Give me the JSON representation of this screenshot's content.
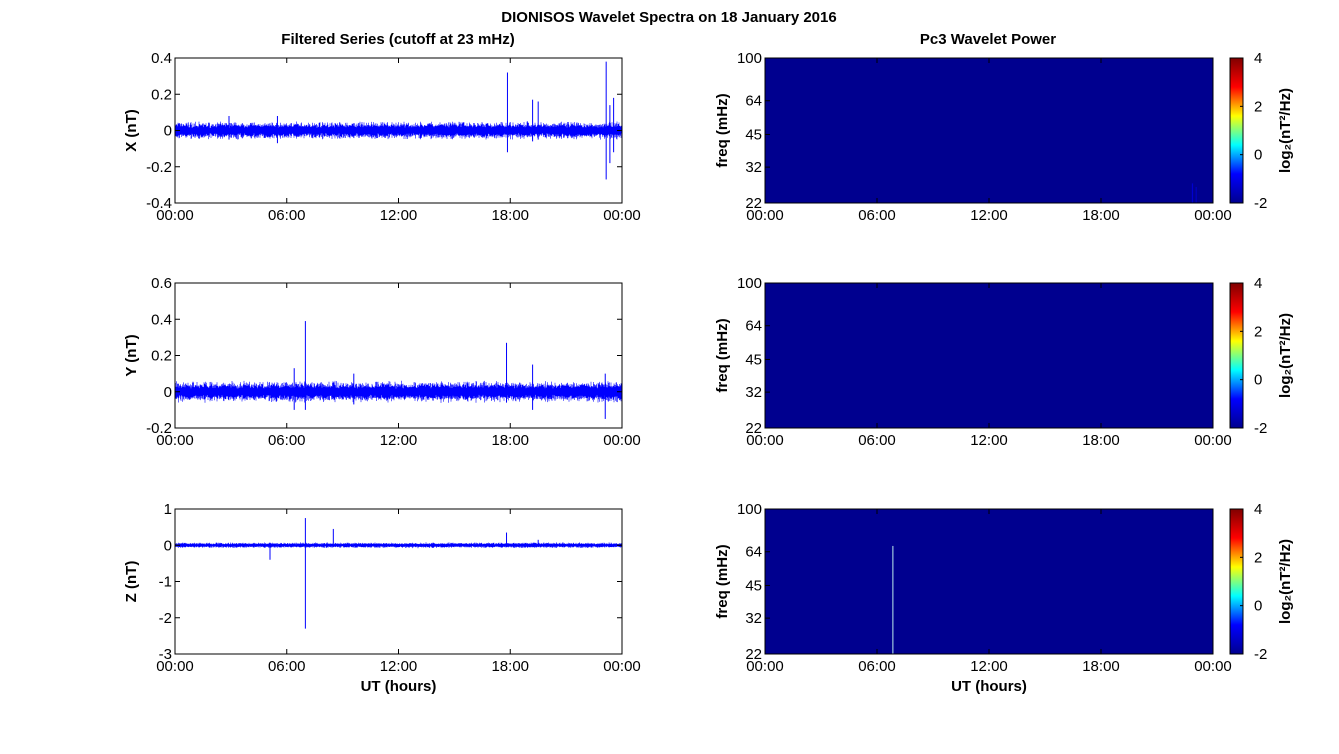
{
  "figure": {
    "title": "DIONISOS Wavelet Spectra on 18 January 2016",
    "left_title": "Filtered Series (cutoff at 23 mHz)",
    "right_title": "Pc3 Wavelet Power"
  },
  "colors": {
    "series": "#0000ff",
    "background_power": "#00008f",
    "colormap": [
      "#00008f",
      "#0000ff",
      "#00ffff",
      "#ffff00",
      "#ff0000",
      "#800000"
    ]
  },
  "chart_data": [
    {
      "type": "line",
      "component": "X",
      "ylabel": "X (nT)",
      "xlabel": "",
      "ylim": [
        -0.4,
        0.4
      ],
      "yticks": [
        "-0.4",
        "-0.2",
        "0",
        "0.2",
        "0.4"
      ],
      "xticks": [
        "00:00",
        "06:00",
        "12:00",
        "18:00",
        "00:00"
      ],
      "xlim_hours": [
        0,
        24
      ],
      "baseline_amplitude": 0.025,
      "spikes": [
        {
          "t": 2.9,
          "min": -0.05,
          "max": 0.08
        },
        {
          "t": 5.5,
          "min": -0.07,
          "max": 0.08
        },
        {
          "t": 17.85,
          "min": -0.12,
          "max": 0.32
        },
        {
          "t": 19.2,
          "min": -0.06,
          "max": 0.17
        },
        {
          "t": 19.5,
          "min": -0.05,
          "max": 0.16
        },
        {
          "t": 23.15,
          "min": -0.27,
          "max": 0.38
        },
        {
          "t": 23.35,
          "min": -0.18,
          "max": 0.14
        },
        {
          "t": 23.55,
          "min": -0.12,
          "max": 0.18
        }
      ]
    },
    {
      "type": "line",
      "component": "Y",
      "ylabel": "Y (nT)",
      "xlabel": "",
      "ylim": [
        -0.2,
        0.6
      ],
      "yticks": [
        "-0.2",
        "0",
        "0.2",
        "0.4",
        "0.6"
      ],
      "xticks": [
        "00:00",
        "06:00",
        "12:00",
        "18:00",
        "00:00"
      ],
      "xlim_hours": [
        0,
        24
      ],
      "baseline_amplitude": 0.03,
      "spikes": [
        {
          "t": 6.4,
          "min": -0.1,
          "max": 0.13
        },
        {
          "t": 7.0,
          "min": -0.1,
          "max": 0.39
        },
        {
          "t": 9.6,
          "min": -0.07,
          "max": 0.1
        },
        {
          "t": 17.8,
          "min": -0.06,
          "max": 0.27
        },
        {
          "t": 19.2,
          "min": -0.1,
          "max": 0.15
        },
        {
          "t": 23.1,
          "min": -0.15,
          "max": 0.1
        }
      ]
    },
    {
      "type": "line",
      "component": "Z",
      "ylabel": "Z (nT)",
      "xlabel": "UT (hours)",
      "ylim": [
        -3,
        1
      ],
      "yticks": [
        "-3",
        "-2",
        "-1",
        "0",
        "1"
      ],
      "xticks": [
        "00:00",
        "06:00",
        "12:00",
        "18:00",
        "00:00"
      ],
      "xlim_hours": [
        0,
        24
      ],
      "baseline_amplitude": 0.04,
      "spikes": [
        {
          "t": 5.1,
          "min": -0.4,
          "max": 0.05
        },
        {
          "t": 7.0,
          "min": -2.3,
          "max": 0.75
        },
        {
          "t": 8.5,
          "min": -0.05,
          "max": 0.45
        },
        {
          "t": 17.8,
          "min": -0.05,
          "max": 0.35
        },
        {
          "t": 19.5,
          "min": -0.05,
          "max": 0.15
        }
      ]
    },
    {
      "type": "heatmap",
      "ylabel": "freq (mHz)",
      "xlabel": "",
      "yticks": [
        "22",
        "32",
        "45",
        "64",
        "100"
      ],
      "ylim_mHz": [
        22,
        100
      ],
      "xticks": [
        "00:00",
        "06:00",
        "12:00",
        "18:00",
        "00:00"
      ],
      "colorbar_label": "log₂(nT²/Hz)",
      "clim": [
        -2,
        4
      ],
      "colorbar_ticks": [
        "-2",
        "0",
        "2",
        "4"
      ],
      "features": [
        {
          "t": 22.9,
          "f_max_mHz": 27,
          "color": "#0000d0"
        },
        {
          "t": 23.1,
          "f_max_mHz": 26,
          "color": "#0000c0"
        }
      ]
    },
    {
      "type": "heatmap",
      "ylabel": "freq (mHz)",
      "xlabel": "",
      "yticks": [
        "22",
        "32",
        "45",
        "64",
        "100"
      ],
      "ylim_mHz": [
        22,
        100
      ],
      "xticks": [
        "00:00",
        "06:00",
        "12:00",
        "18:00",
        "00:00"
      ],
      "colorbar_label": "log₂(nT²/Hz)",
      "clim": [
        -2,
        4
      ],
      "colorbar_ticks": [
        "-2",
        "0",
        "2",
        "4"
      ],
      "features": []
    },
    {
      "type": "heatmap",
      "ylabel": "freq (mHz)",
      "xlabel": "UT (hours)",
      "yticks": [
        "22",
        "32",
        "45",
        "64",
        "100"
      ],
      "ylim_mHz": [
        22,
        100
      ],
      "xticks": [
        "00:00",
        "06:00",
        "12:00",
        "18:00",
        "00:00"
      ],
      "colorbar_label": "log₂(nT²/Hz)",
      "clim": [
        -2,
        4
      ],
      "colorbar_ticks": [
        "-2",
        "0",
        "2",
        "4"
      ],
      "features": [
        {
          "t": 6.85,
          "f_max_mHz": 68,
          "color": "#9ec8dc"
        }
      ]
    }
  ]
}
